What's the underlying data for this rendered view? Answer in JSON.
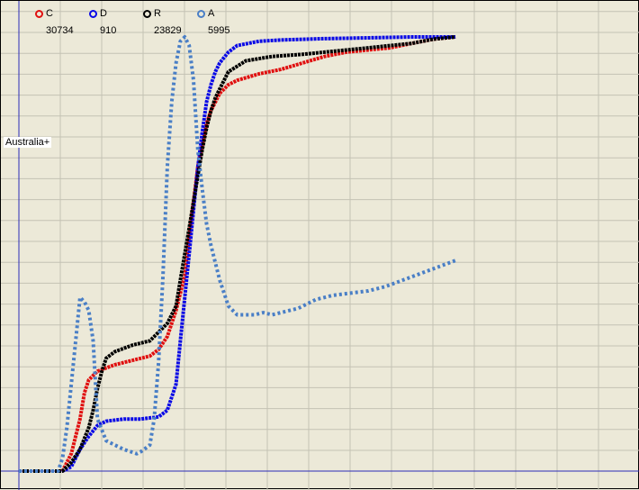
{
  "chart_data": {
    "type": "line",
    "title": "",
    "xlabel": "",
    "ylabel": "",
    "grid": true,
    "legend_position": "top-left",
    "axis_label_left": "Australia+",
    "xlim": [
      0,
      100
    ],
    "ylim": [
      0,
      100
    ],
    "series": [
      {
        "name": "C",
        "count_label": "30734",
        "color": "#e01010",
        "style": "dotted-thick",
        "points": [
          [
            0,
            0
          ],
          [
            10,
            0
          ],
          [
            12,
            4
          ],
          [
            14,
            12
          ],
          [
            15,
            18
          ],
          [
            16,
            21
          ],
          [
            18,
            23
          ],
          [
            22,
            24.5
          ],
          [
            26,
            25.5
          ],
          [
            30,
            26.5
          ],
          [
            32,
            28
          ],
          [
            34,
            31
          ],
          [
            36,
            37
          ],
          [
            38,
            45
          ],
          [
            39,
            54
          ],
          [
            40,
            62
          ],
          [
            41,
            70
          ],
          [
            42,
            75
          ],
          [
            43,
            80
          ],
          [
            44,
            83
          ],
          [
            45,
            85
          ],
          [
            46,
            87
          ],
          [
            48,
            89
          ],
          [
            50,
            90
          ],
          [
            55,
            91.5
          ],
          [
            60,
            92.5
          ],
          [
            65,
            94
          ],
          [
            70,
            95.5
          ],
          [
            75,
            96.5
          ],
          [
            80,
            97
          ],
          [
            85,
            97.5
          ],
          [
            90,
            98.5
          ],
          [
            95,
            99.5
          ],
          [
            100,
            100
          ]
        ]
      },
      {
        "name": "D",
        "count_label": "910",
        "color": "#0a0ae6",
        "style": "dotted-thick",
        "points": [
          [
            0,
            0
          ],
          [
            10,
            0
          ],
          [
            12,
            1
          ],
          [
            14,
            5
          ],
          [
            16,
            8
          ],
          [
            18,
            10.5
          ],
          [
            20,
            11.5
          ],
          [
            24,
            12
          ],
          [
            28,
            12
          ],
          [
            32,
            12.5
          ],
          [
            34,
            14
          ],
          [
            36,
            20
          ],
          [
            37,
            30
          ],
          [
            38,
            40
          ],
          [
            39,
            50
          ],
          [
            40,
            60
          ],
          [
            41,
            70
          ],
          [
            42,
            78
          ],
          [
            43,
            85
          ],
          [
            44,
            89
          ],
          [
            45,
            92
          ],
          [
            46,
            94
          ],
          [
            48,
            96.5
          ],
          [
            50,
            98
          ],
          [
            55,
            99
          ],
          [
            60,
            99.3
          ],
          [
            70,
            99.6
          ],
          [
            80,
            99.8
          ],
          [
            90,
            100
          ],
          [
            100,
            100
          ]
        ]
      },
      {
        "name": "R",
        "count_label": "23829",
        "color": "#000000",
        "style": "dotted-thick",
        "points": [
          [
            0,
            0
          ],
          [
            10,
            0
          ],
          [
            12,
            2
          ],
          [
            14,
            5
          ],
          [
            16,
            10
          ],
          [
            17,
            14
          ],
          [
            18,
            19
          ],
          [
            19,
            23
          ],
          [
            20,
            26
          ],
          [
            22,
            27.5
          ],
          [
            26,
            29
          ],
          [
            30,
            30
          ],
          [
            32,
            32
          ],
          [
            34,
            34
          ],
          [
            36,
            38
          ],
          [
            37,
            44
          ],
          [
            38,
            50
          ],
          [
            39,
            56
          ],
          [
            40,
            62
          ],
          [
            41,
            68
          ],
          [
            42,
            74
          ],
          [
            43,
            79
          ],
          [
            44,
            83
          ],
          [
            45,
            86
          ],
          [
            46,
            88
          ],
          [
            48,
            92
          ],
          [
            52,
            94.5
          ],
          [
            58,
            95.5
          ],
          [
            65,
            96
          ],
          [
            70,
            96.5
          ],
          [
            75,
            97
          ],
          [
            80,
            97.5
          ],
          [
            85,
            98
          ],
          [
            90,
            98.5
          ],
          [
            95,
            99.5
          ],
          [
            100,
            100
          ]
        ]
      },
      {
        "name": "A",
        "count_label": "5995",
        "color": "#4a7fc6",
        "style": "dotted",
        "points": [
          [
            0,
            0
          ],
          [
            9,
            0
          ],
          [
            10,
            3
          ],
          [
            11,
            10
          ],
          [
            12,
            20
          ],
          [
            13,
            30
          ],
          [
            14,
            40
          ],
          [
            15,
            39
          ],
          [
            16,
            37
          ],
          [
            17,
            30
          ],
          [
            18,
            12
          ],
          [
            20,
            7
          ],
          [
            24,
            5
          ],
          [
            27,
            4
          ],
          [
            28,
            4.5
          ],
          [
            30,
            6
          ],
          [
            31,
            12
          ],
          [
            32,
            25
          ],
          [
            33,
            45
          ],
          [
            34,
            70
          ],
          [
            35,
            85
          ],
          [
            36,
            94
          ],
          [
            37,
            99
          ],
          [
            38,
            100
          ],
          [
            39,
            98
          ],
          [
            40,
            90
          ],
          [
            41,
            74
          ],
          [
            42,
            65
          ],
          [
            43,
            57
          ],
          [
            44,
            52
          ],
          [
            46,
            44
          ],
          [
            48,
            38
          ],
          [
            50,
            36
          ],
          [
            54,
            36
          ],
          [
            56,
            36.5
          ],
          [
            58,
            36
          ],
          [
            60,
            36.5
          ],
          [
            64,
            37.5
          ],
          [
            68,
            39.5
          ],
          [
            72,
            40.5
          ],
          [
            76,
            41
          ],
          [
            80,
            41.5
          ],
          [
            84,
            42.5
          ],
          [
            88,
            44
          ],
          [
            92,
            45.5
          ],
          [
            96,
            47
          ],
          [
            100,
            48.5
          ]
        ]
      }
    ]
  }
}
